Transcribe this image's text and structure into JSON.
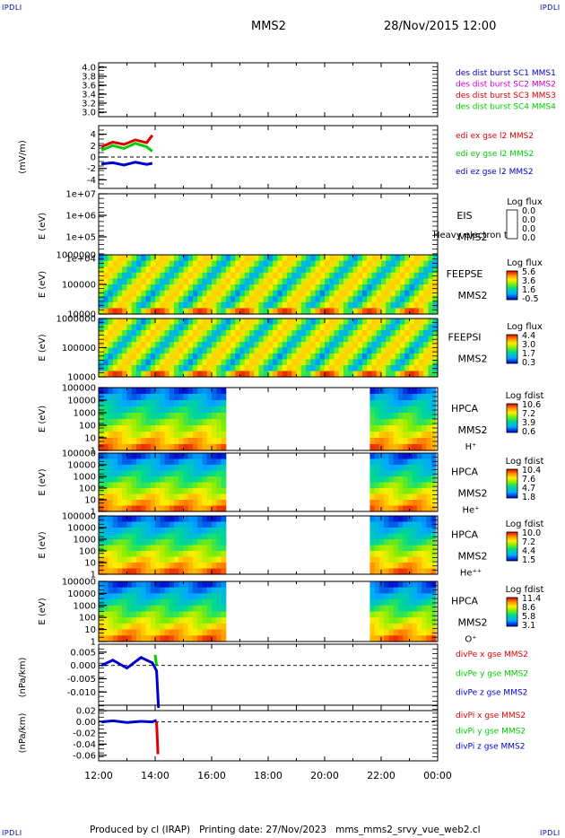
{
  "corner_marks": {
    "tl": "IPDLI",
    "tr": "IPDLI",
    "bl": "IPDLI",
    "br": "IPDLI"
  },
  "header": {
    "spacecraft": "MMS2",
    "datetime": "28/Nov/2015 12:00"
  },
  "footer": {
    "text": "Produced by cl (IRAP)   Printing date: 27/Nov/2023   mms_mms2_srvy_vue_web2.cl"
  },
  "colors": {
    "red": "#dd0000",
    "green": "#00cc00",
    "blue": "#0000cc",
    "magenta": "#cc00cc"
  },
  "chart_data": {
    "type": "multi-panel",
    "x_ticks": [
      "12:00",
      "14:00",
      "16:00",
      "18:00",
      "20:00",
      "22:00",
      "00:00"
    ],
    "panels": [
      {
        "id": "p1",
        "type": "line",
        "ylabel": "",
        "ylim": [
          2.9,
          4.1
        ],
        "y_ticks": [
          "4.0",
          "3.8",
          "3.6",
          "3.4",
          "3.2",
          "3.0"
        ],
        "y_tick_vals": [
          4.0,
          3.8,
          3.6,
          3.4,
          3.2,
          3.0
        ],
        "legend": [
          {
            "text": "des dist burst SC1 MMS1",
            "color": "#0000cc"
          },
          {
            "text": "des dist burst SC2 MMS2",
            "color": "#cc00cc"
          },
          {
            "text": "des dist burst SC3 MMS3",
            "color": "#dd0000"
          },
          {
            "text": "des dist burst SC4 MMS4",
            "color": "#00cc00"
          }
        ],
        "series": []
      },
      {
        "id": "p2",
        "type": "line",
        "ylabel": "(mV/m)",
        "ylim": [
          -5.5,
          5.5
        ],
        "y_ticks": [
          "4",
          "2",
          "0",
          "-2",
          "-4"
        ],
        "y_tick_vals": [
          4,
          2,
          0,
          -2,
          -4
        ],
        "zero_line": true,
        "legend": [
          {
            "text": "edi ex gse l2 MMS2",
            "color": "#dd0000"
          },
          {
            "text": "edi ey gse l2 MMS2",
            "color": "#00cc00"
          },
          {
            "text": "edi ez gse l2 MMS2",
            "color": "#0000cc"
          }
        ],
        "series": [
          {
            "color": "#dd0000",
            "x": [
              0.1,
              0.5,
              0.9,
              1.3,
              1.7,
              1.9
            ],
            "y": [
              1.8,
              2.6,
              2.2,
              3.0,
              2.5,
              3.8
            ]
          },
          {
            "color": "#00cc00",
            "x": [
              0.1,
              0.5,
              0.9,
              1.3,
              1.7,
              1.9
            ],
            "y": [
              1.2,
              2.0,
              1.5,
              2.4,
              1.8,
              1.0
            ]
          },
          {
            "color": "#0000cc",
            "x": [
              0.1,
              0.5,
              0.9,
              1.3,
              1.7,
              1.9
            ],
            "y": [
              -1.2,
              -1.0,
              -1.4,
              -0.9,
              -1.3,
              -1.1
            ]
          }
        ]
      },
      {
        "id": "p3",
        "type": "heatmap",
        "ylabel": "E (eV)",
        "log": true,
        "y_ticks": [
          "1e+07",
          "1e+06",
          "1e+05",
          "1e+04"
        ],
        "instrument": "EIS",
        "sc": "MMS2",
        "species": "",
        "overflow_note": "Heavy electron to",
        "cbar": {
          "title": "Log flux",
          "labels": [
            "0.0",
            "0.0",
            "0.0",
            "0.0"
          ]
        },
        "coverage": []
      },
      {
        "id": "p4",
        "type": "heatmap",
        "ylabel": "E (eV)",
        "log": true,
        "y_ticks": [
          "1000000",
          "100000",
          "10000"
        ],
        "instrument": "FEEPSE",
        "sc": "MMS2",
        "species": "",
        "cbar": {
          "title": "Log flux",
          "labels": [
            "5.6",
            "3.6",
            "1.6",
            "-0.5"
          ]
        },
        "coverage": [
          [
            0,
            12
          ]
        ]
      },
      {
        "id": "p5",
        "type": "heatmap",
        "ylabel": "E (eV)",
        "log": true,
        "y_ticks": [
          "1000000",
          "100000",
          "10000"
        ],
        "instrument": "FEEPSI",
        "sc": "MMS2",
        "species": "",
        "cbar": {
          "title": "Log flux",
          "labels": [
            "4.4",
            "3.0",
            "1.7",
            "0.3"
          ]
        },
        "coverage": [
          [
            0,
            12
          ]
        ]
      },
      {
        "id": "p6",
        "type": "heatmap",
        "ylabel": "E (eV)",
        "log": true,
        "y_ticks": [
          "100000",
          "10000",
          "1000",
          "100",
          "10",
          "1"
        ],
        "instrument": "HPCA",
        "sc": "MMS2",
        "species": "H⁺",
        "cbar": {
          "title": "Log fdist",
          "labels": [
            "10.6",
            "7.2",
            "3.9",
            "0.6"
          ]
        },
        "coverage": [
          [
            0,
            4.5
          ],
          [
            9.6,
            12
          ]
        ]
      },
      {
        "id": "p7",
        "type": "heatmap",
        "ylabel": "E (eV)",
        "log": true,
        "y_ticks": [
          "100000",
          "10000",
          "1000",
          "100",
          "10",
          "1"
        ],
        "instrument": "HPCA",
        "sc": "MMS2",
        "species": "He⁺",
        "cbar": {
          "title": "Log fdist",
          "labels": [
            "10.4",
            "7.6",
            "4.7",
            "1.8"
          ]
        },
        "coverage": [
          [
            0,
            4.5
          ],
          [
            9.6,
            12
          ]
        ]
      },
      {
        "id": "p8",
        "type": "heatmap",
        "ylabel": "E (eV)",
        "log": true,
        "y_ticks": [
          "100000",
          "10000",
          "1000",
          "100",
          "10",
          "1"
        ],
        "instrument": "HPCA",
        "sc": "MMS2",
        "species": "He⁺⁺",
        "cbar": {
          "title": "Log fdist",
          "labels": [
            "10.0",
            "7.2",
            "4.4",
            "1.5"
          ]
        },
        "coverage": [
          [
            0,
            4.5
          ],
          [
            9.6,
            12
          ]
        ]
      },
      {
        "id": "p9",
        "type": "heatmap",
        "ylabel": "E (eV)",
        "log": true,
        "y_ticks": [
          "100000",
          "10000",
          "1000",
          "100",
          "10",
          "1"
        ],
        "instrument": "HPCA",
        "sc": "MMS2",
        "species": "O⁺",
        "cbar": {
          "title": "Log fdist",
          "labels": [
            "11.4",
            "8.6",
            "5.8",
            "3.1"
          ]
        },
        "coverage": [
          [
            0,
            4.5
          ],
          [
            9.6,
            12
          ]
        ]
      },
      {
        "id": "p10",
        "type": "line",
        "ylabel": "(nPa/km)",
        "ylim": [
          -0.017,
          0.008
        ],
        "y_ticks": [
          "0.005",
          "0.000",
          "-0.005",
          "-0.010"
        ],
        "y_tick_vals": [
          0.005,
          0.0,
          -0.005,
          -0.01
        ],
        "zero_line": true,
        "legend": [
          {
            "text": "divPe x gse MMS2",
            "color": "#dd0000"
          },
          {
            "text": "divPe y gse MMS2",
            "color": "#00cc00"
          },
          {
            "text": "divPe z gse MMS2",
            "color": "#0000cc"
          }
        ],
        "series": [
          {
            "color": "#0000cc",
            "x": [
              0.1,
              0.5,
              1.0,
              1.5,
              1.9,
              2.05,
              2.12
            ],
            "y": [
              0.0,
              0.002,
              -0.001,
              0.003,
              0.001,
              -0.002,
              -0.016
            ]
          },
          {
            "color": "#00cc00",
            "x": [
              2.0,
              2.05
            ],
            "y": [
              0.004,
              0.0
            ]
          }
        ]
      },
      {
        "id": "p11",
        "type": "line",
        "ylabel": "(nPa/km)",
        "ylim": [
          -0.07,
          0.03
        ],
        "y_ticks": [
          "0.02",
          "0.00",
          "-0.02",
          "-0.04",
          "-0.06"
        ],
        "y_tick_vals": [
          0.02,
          0.0,
          -0.02,
          -0.04,
          -0.06
        ],
        "zero_line": true,
        "legend": [
          {
            "text": "divPi x gse MMS2",
            "color": "#dd0000"
          },
          {
            "text": "divPi y gse MMS2",
            "color": "#00cc00"
          },
          {
            "text": "divPi z gse MMS2",
            "color": "#0000cc"
          }
        ],
        "series": [
          {
            "color": "#0000cc",
            "x": [
              0.1,
              0.5,
              1.0,
              1.5,
              1.9,
              2.05
            ],
            "y": [
              0.0,
              0.002,
              -0.001,
              0.001,
              0.0,
              0.003
            ]
          },
          {
            "color": "#dd0000",
            "x": [
              2.05,
              2.1
            ],
            "y": [
              0.0,
              -0.058
            ]
          }
        ]
      }
    ]
  }
}
